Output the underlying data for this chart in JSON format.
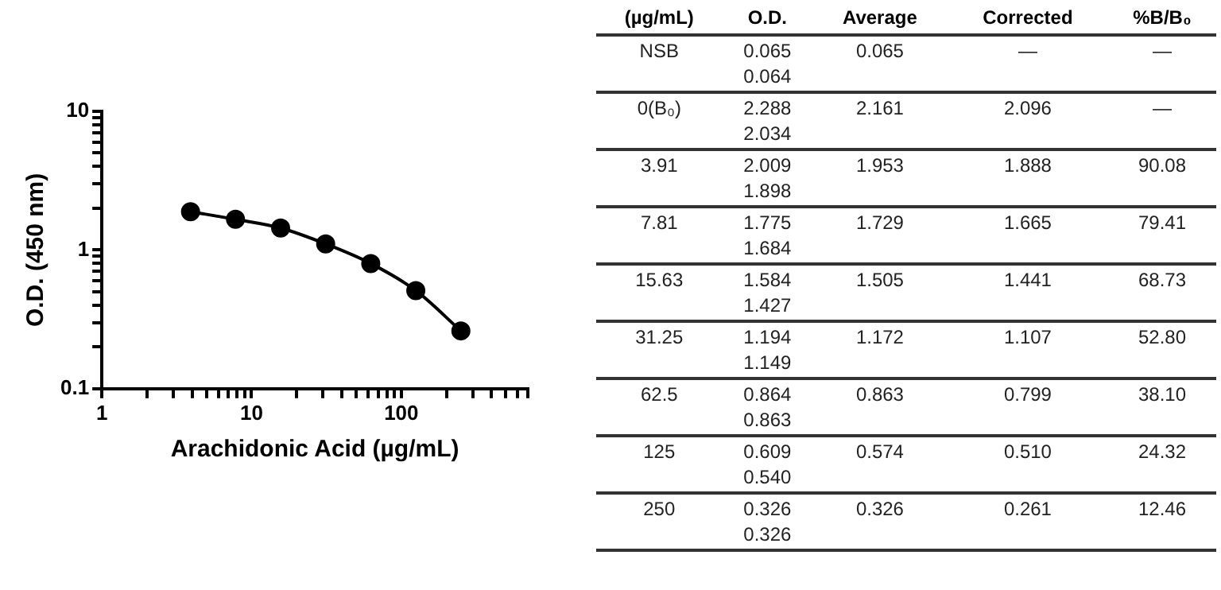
{
  "chart_data": [
    {
      "type": "line",
      "xlabel": "Arachidonic Acid (µg/mL)",
      "ylabel": "O.D. (450 nm)",
      "log": "xy",
      "grid": false,
      "legend": false,
      "marker": "circle",
      "line_style": "solid",
      "x": [
        3.91,
        7.81,
        15.63,
        31.25,
        62.5,
        125,
        250
      ],
      "series": [
        {
          "color": "#000000",
          "values": [
            1.888,
            1.665,
            1.441,
            1.107,
            0.799,
            0.51,
            0.261
          ]
        }
      ],
      "xlim": [
        1,
        700
      ],
      "xticks": [
        1,
        {
          "value": 2,
          "label": null
        },
        {
          "value": 3,
          "label": null
        },
        {
          "value": 4,
          "label": null
        },
        {
          "value": 5,
          "label": null
        },
        {
          "value": 6,
          "label": null
        },
        {
          "value": 7,
          "label": null
        },
        {
          "value": 8,
          "label": null
        },
        {
          "value": 9,
          "label": null
        },
        10,
        {
          "value": 20,
          "label": null
        },
        {
          "value": 30,
          "label": null
        },
        {
          "value": 40,
          "label": null
        },
        {
          "value": 50,
          "label": null
        },
        {
          "value": 60,
          "label": null
        },
        {
          "value": 70,
          "label": null
        },
        {
          "value": 80,
          "label": null
        },
        {
          "value": 90,
          "label": null
        },
        100,
        {
          "value": 200,
          "label": null
        },
        {
          "value": 300,
          "label": null
        },
        {
          "value": 400,
          "label": null
        },
        {
          "value": 500,
          "label": null
        },
        {
          "value": 600,
          "label": null
        },
        {
          "value": 700,
          "label": null
        }
      ],
      "ylim": [
        0.1,
        10
      ],
      "yticks": [
        0.1,
        {
          "value": 0.2,
          "label": null
        },
        {
          "value": 0.3,
          "label": null
        },
        {
          "value": 0.4,
          "label": null
        },
        {
          "value": 0.5,
          "label": null
        },
        {
          "value": 0.6,
          "label": null
        },
        {
          "value": 0.7,
          "label": null
        },
        {
          "value": 0.8,
          "label": null
        },
        {
          "value": 0.9,
          "label": null
        },
        1,
        {
          "value": 2,
          "label": null
        },
        {
          "value": 3,
          "label": null
        },
        {
          "value": 4,
          "label": null
        },
        {
          "value": 5,
          "label": null
        },
        {
          "value": 6,
          "label": null
        },
        {
          "value": 7,
          "label": null
        },
        {
          "value": 8,
          "label": null
        },
        {
          "value": 9,
          "label": null
        },
        10
      ]
    },
    {
      "type": "other",
      "categories": [
        "(µg/mL)",
        "O.D.",
        "Average",
        "Corrected",
        "%B/B₀"
      ],
      "annotations": [
        "NSB",
        "0.065\n0.064",
        "0.065",
        "—",
        "—",
        "0(B₀)",
        "2.288\n2.034",
        "2.161",
        "2.096",
        "—",
        "3.91",
        "2.009\n1.898",
        "1.953",
        "1.888",
        "90.08",
        "7.81",
        "1.775\n1.684",
        "1.729",
        "1.665",
        "79.41",
        "15.63",
        "1.584\n1.427",
        "1.505",
        "1.441",
        "68.73",
        "31.25",
        "1.194\n1.149",
        "1.172",
        "1.107",
        "52.80",
        "62.5",
        "0.864\n0.863",
        "0.863",
        "0.799",
        "38.10",
        "125",
        "0.609\n0.540",
        "0.574",
        "0.510",
        "24.32",
        "250",
        "0.326\n0.326",
        "0.326",
        "0.261",
        "12.46"
      ]
    }
  ]
}
